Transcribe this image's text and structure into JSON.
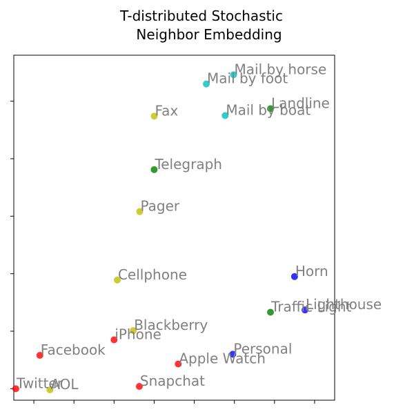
{
  "chart_data": {
    "type": "scatter",
    "title_lines": [
      "T-distributed Stochastic",
      "Neighbor Embedding"
    ],
    "xlim": [
      -34,
      46
    ],
    "ylim": [
      -32,
      28
    ],
    "x_ticks": [
      -29,
      -19,
      -9,
      1,
      11,
      21,
      31,
      41
    ],
    "y_ticks": [
      -30,
      -20,
      -10,
      0,
      10,
      20
    ],
    "tick_labels_visible": false,
    "grid": false,
    "legend": "none",
    "colors": {
      "red": "#ff0000",
      "yellow": "#bfbf00",
      "green": "#008000",
      "cyan": "#00bfbf",
      "blue": "#0000ff"
    },
    "points": [
      {
        "label": "Mail by horse",
        "x": 20.8,
        "y": 24.6,
        "color": "cyan"
      },
      {
        "label": "Mail by foot",
        "x": 14.0,
        "y": 23.0,
        "color": "cyan"
      },
      {
        "label": "Mail by boat",
        "x": 18.7,
        "y": 17.5,
        "color": "cyan"
      },
      {
        "label": "Landline",
        "x": 30.0,
        "y": 18.7,
        "color": "green"
      },
      {
        "label": "Fax",
        "x": 1.0,
        "y": 17.4,
        "color": "yellow"
      },
      {
        "label": "Telegraph",
        "x": 1.0,
        "y": 8.1,
        "color": "green"
      },
      {
        "label": "Pager",
        "x": -2.6,
        "y": 0.8,
        "color": "yellow"
      },
      {
        "label": "Cellphone",
        "x": -8.2,
        "y": -11.1,
        "color": "yellow"
      },
      {
        "label": "Horn",
        "x": 36.0,
        "y": -10.5,
        "color": "blue"
      },
      {
        "label": "Lighthouse",
        "x": 38.6,
        "y": -16.3,
        "color": "blue"
      },
      {
        "label": "Traffic Light",
        "x": 30.0,
        "y": -16.7,
        "color": "green"
      },
      {
        "label": "Blackberry",
        "x": -4.2,
        "y": -19.9,
        "color": "yellow"
      },
      {
        "label": "iPhone",
        "x": -9.0,
        "y": -21.5,
        "color": "red"
      },
      {
        "label": "Facebook",
        "x": -27.5,
        "y": -24.2,
        "color": "red"
      },
      {
        "label": "Personal",
        "x": 20.6,
        "y": -24.0,
        "color": "blue"
      },
      {
        "label": "Apple Watch",
        "x": 7.0,
        "y": -25.7,
        "color": "red"
      },
      {
        "label": "Snapchat",
        "x": -2.7,
        "y": -29.6,
        "color": "red"
      },
      {
        "label": "Twitter",
        "x": -33.5,
        "y": -30.0,
        "color": "red"
      },
      {
        "label": "AOL",
        "x": -25.0,
        "y": -30.2,
        "color": "yellow"
      }
    ]
  }
}
